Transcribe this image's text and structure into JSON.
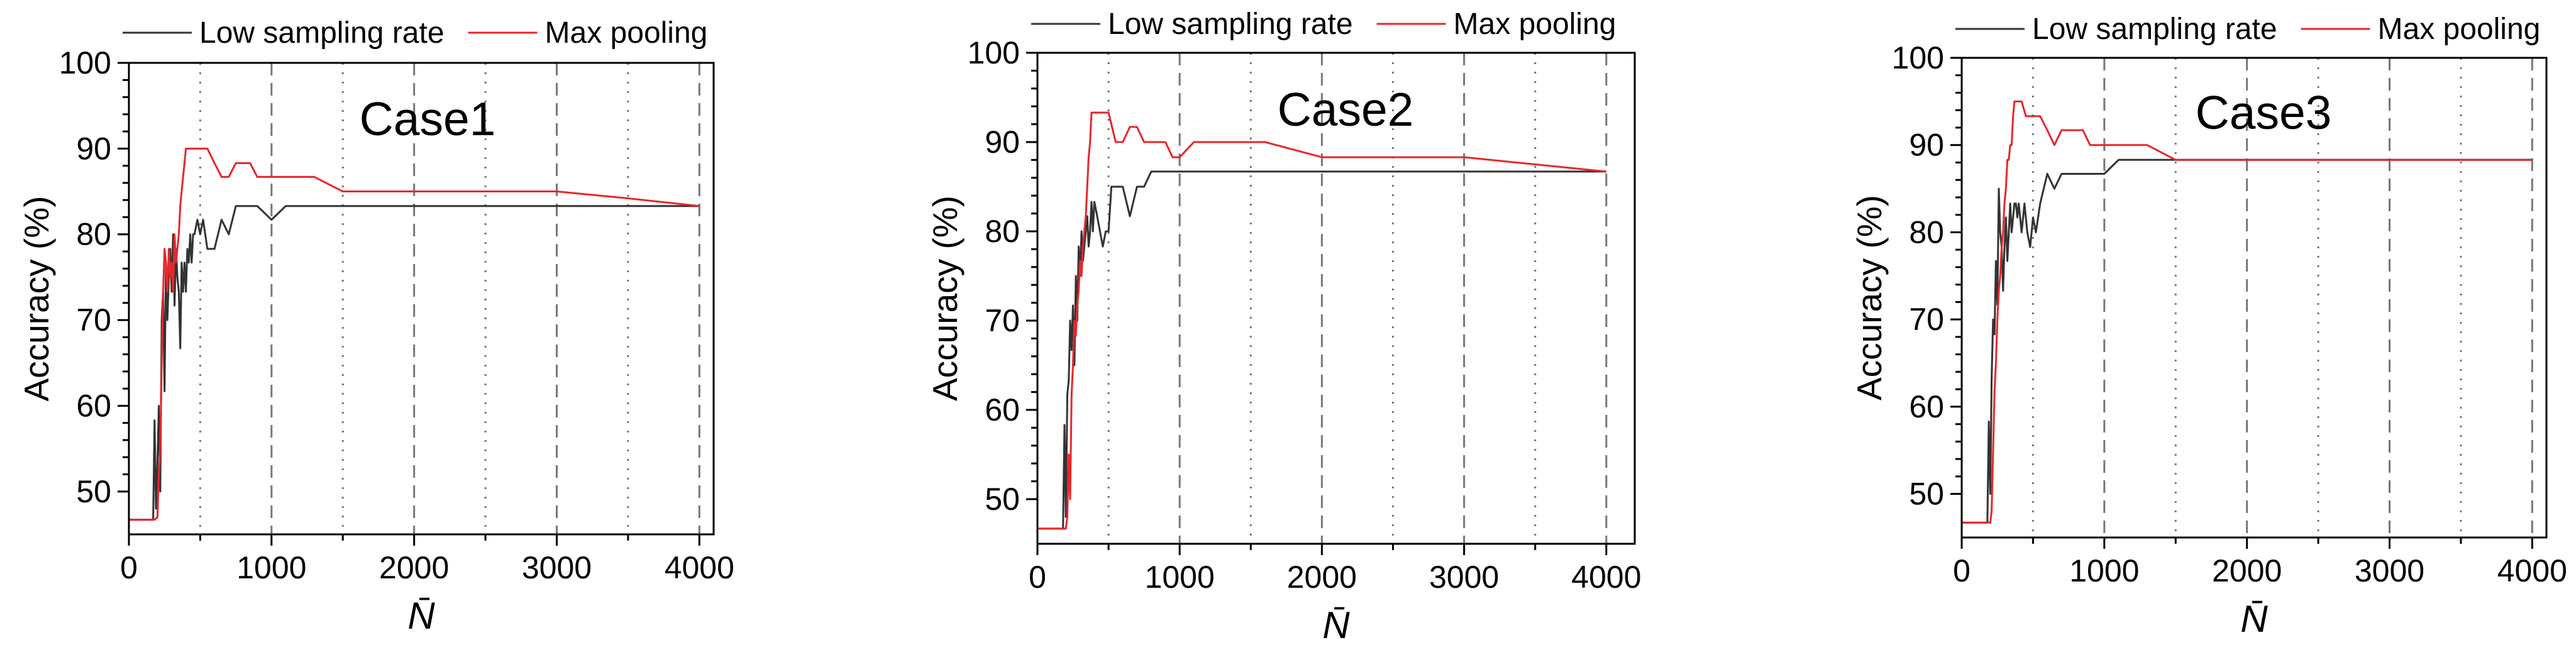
{
  "figure": {
    "description_label": "Accuracy versus N-bar for three cases"
  },
  "colors": {
    "low_sampling_rate": "#333333",
    "max_pooling": "#e8262c",
    "axis": "#000000",
    "gridline": "#777777"
  },
  "chart_data": [
    {
      "type": "line",
      "title": "Case1",
      "xlabel": "N̄",
      "ylabel": "Accuracy (%)",
      "xlim": [
        0,
        4100
      ],
      "ylim": [
        45,
        100
      ],
      "xticks": [
        0,
        1000,
        2000,
        3000,
        4000
      ],
      "yticks": [
        50,
        60,
        70,
        80,
        90,
        100
      ],
      "xtick_labels": [
        "0",
        "1000",
        "2000",
        "3000",
        "4000"
      ],
      "ytick_labels": [
        "50",
        "60",
        "70",
        "80",
        "90",
        "100"
      ],
      "grid_dashed_x": [
        1000,
        2000,
        3000,
        4000
      ],
      "grid_dotted_x": [
        500,
        1500,
        2500,
        3500
      ],
      "legend": "top-right",
      "series": [
        {
          "name": "Low sampling rate",
          "x": [
            0,
            100,
            150,
            170,
            180,
            190,
            200,
            210,
            220,
            230,
            240,
            250,
            260,
            270,
            280,
            290,
            300,
            310,
            320,
            330,
            340,
            350,
            360,
            370,
            380,
            390,
            400,
            410,
            420,
            430,
            440,
            450,
            460,
            480,
            500,
            520,
            550,
            600,
            650,
            700,
            750,
            800,
            900,
            1000,
            1100,
            1200,
            1500,
            2000,
            3000,
            4000
          ],
          "y": [
            46.7,
            46.7,
            46.7,
            46.7,
            58.3,
            48,
            53.3,
            60,
            50,
            70,
            73.3,
            61.7,
            76.7,
            70,
            75,
            78.3,
            73.3,
            80,
            71.7,
            78.3,
            75,
            73.3,
            66.7,
            76.7,
            73.3,
            76.7,
            73.3,
            78.3,
            76.7,
            80,
            76.7,
            80,
            80,
            81.7,
            80,
            81.7,
            78.3,
            78.3,
            81.7,
            80,
            83.3,
            83.3,
            83.3,
            81.7,
            83.3,
            83.3,
            83.3,
            83.3,
            83.3,
            83.3
          ]
        },
        {
          "name": "Max pooling",
          "x": [
            0,
            100,
            150,
            180,
            200,
            210,
            220,
            230,
            240,
            250,
            260,
            270,
            280,
            290,
            300,
            310,
            320,
            330,
            340,
            350,
            360,
            370,
            380,
            400,
            420,
            450,
            500,
            550,
            600,
            650,
            700,
            750,
            800,
            850,
            900,
            1000,
            1100,
            1200,
            1300,
            1500,
            2000,
            2600,
            3000,
            3500,
            4000
          ],
          "y": [
            46.7,
            46.7,
            46.7,
            46.7,
            47,
            52,
            55,
            65,
            73.3,
            78.3,
            76.7,
            73.3,
            78.3,
            75,
            76.7,
            73.3,
            80,
            76.7,
            78.3,
            80,
            83.3,
            85,
            86.7,
            90,
            90,
            90,
            90,
            90,
            88.3,
            86.7,
            86.7,
            88.3,
            88.3,
            88.3,
            86.7,
            86.7,
            86.7,
            86.7,
            86.7,
            85,
            85,
            85,
            85,
            84.2,
            83.3
          ]
        }
      ]
    },
    {
      "type": "line",
      "title": "Case2",
      "xlabel": "N̄",
      "ylabel": "Accuracy (%)",
      "xlim": [
        0,
        4200
      ],
      "ylim": [
        45,
        100
      ],
      "xticks": [
        0,
        1000,
        2000,
        3000,
        4000
      ],
      "yticks": [
        50,
        60,
        70,
        80,
        90,
        100
      ],
      "xtick_labels": [
        "0",
        "1000",
        "2000",
        "3000",
        "4000"
      ],
      "ytick_labels": [
        "50",
        "60",
        "70",
        "80",
        "90",
        "100"
      ],
      "grid_dashed_x": [
        1000,
        2000,
        3000,
        4000
      ],
      "grid_dotted_x": [
        500,
        1500,
        2500,
        3500
      ],
      "legend": "top-right",
      "series": [
        {
          "name": "Low sampling rate",
          "x": [
            0,
            100,
            150,
            180,
            190,
            200,
            210,
            220,
            230,
            240,
            250,
            260,
            270,
            280,
            290,
            300,
            310,
            320,
            330,
            340,
            350,
            360,
            370,
            380,
            390,
            400,
            420,
            440,
            460,
            480,
            500,
            520,
            550,
            600,
            650,
            700,
            750,
            800,
            900,
            1000,
            1100,
            1200,
            1500,
            2000,
            3000,
            4000
          ],
          "y": [
            46.7,
            46.7,
            46.7,
            46.7,
            58.3,
            48,
            61.7,
            63.3,
            70,
            66.7,
            71.7,
            65,
            75,
            70,
            78.3,
            75,
            80,
            76.7,
            78.3,
            80,
            81.7,
            78.3,
            80,
            83.3,
            80,
            83.3,
            81.7,
            80,
            78.3,
            80,
            80,
            85,
            85,
            85,
            81.7,
            85,
            85,
            86.7,
            86.7,
            86.7,
            86.7,
            86.7,
            86.7,
            86.7,
            86.7,
            86.7
          ]
        },
        {
          "name": "Max pooling",
          "x": [
            0,
            100,
            150,
            200,
            210,
            220,
            230,
            240,
            250,
            260,
            270,
            280,
            290,
            300,
            310,
            320,
            330,
            340,
            350,
            360,
            370,
            380,
            400,
            420,
            450,
            500,
            550,
            600,
            650,
            700,
            750,
            800,
            850,
            900,
            950,
            1000,
            1100,
            1200,
            1500,
            1600,
            2000,
            2600,
            3000,
            3500,
            4000
          ],
          "y": [
            46.7,
            46.7,
            46.7,
            46.7,
            48,
            55,
            50,
            61.7,
            65,
            70,
            68.3,
            71.7,
            73.3,
            76.7,
            75,
            78.3,
            80,
            81.7,
            85,
            88.3,
            90,
            93.3,
            93.3,
            93.3,
            93.3,
            93.3,
            90,
            90,
            91.7,
            91.7,
            90,
            90,
            90,
            90,
            88.3,
            88.3,
            90,
            90,
            90,
            90,
            88.3,
            88.3,
            88.3,
            87.5,
            86.7
          ]
        }
      ]
    },
    {
      "type": "line",
      "title": "Case3",
      "xlabel": "N̄",
      "ylabel": "Accuracy (%)",
      "xlim": [
        0,
        4100
      ],
      "ylim": [
        45,
        100
      ],
      "xticks": [
        0,
        1000,
        2000,
        3000,
        4000
      ],
      "yticks": [
        50,
        60,
        70,
        80,
        90,
        100
      ],
      "xtick_labels": [
        "0",
        "1000",
        "2000",
        "3000",
        "4000"
      ],
      "ytick_labels": [
        "50",
        "60",
        "70",
        "80",
        "90",
        "100"
      ],
      "grid_dashed_x": [
        1000,
        2000,
        3000,
        4000
      ],
      "grid_dotted_x": [
        500,
        1500,
        2500,
        3500
      ],
      "legend": "top-right",
      "series": [
        {
          "name": "Low sampling rate",
          "x": [
            0,
            100,
            150,
            180,
            190,
            200,
            210,
            220,
            230,
            240,
            250,
            260,
            270,
            280,
            290,
            300,
            310,
            320,
            330,
            340,
            350,
            360,
            370,
            380,
            390,
            400,
            420,
            440,
            460,
            480,
            500,
            520,
            550,
            600,
            650,
            700,
            750,
            800,
            900,
            1000,
            1100,
            1200,
            1500,
            2000,
            3000,
            4000
          ],
          "y": [
            46.7,
            46.7,
            46.7,
            46.7,
            58.3,
            50,
            63.3,
            70,
            68.3,
            76.7,
            71.7,
            85,
            80,
            78.3,
            73.3,
            78.3,
            81.7,
            76.7,
            80,
            83.3,
            80,
            81.7,
            83.3,
            83.3,
            81.7,
            83.3,
            80,
            83.3,
            80,
            78.3,
            81.7,
            80,
            83.3,
            86.7,
            85,
            86.7,
            86.7,
            86.7,
            86.7,
            86.7,
            88.3,
            88.3,
            88.3,
            88.3,
            88.3,
            88.3
          ]
        },
        {
          "name": "Max pooling",
          "x": [
            0,
            100,
            150,
            200,
            210,
            220,
            230,
            240,
            250,
            260,
            270,
            280,
            290,
            300,
            310,
            320,
            330,
            340,
            350,
            360,
            370,
            400,
            420,
            450,
            500,
            550,
            600,
            650,
            700,
            750,
            800,
            850,
            900,
            1000,
            1100,
            1200,
            1300,
            1500,
            1600,
            2000,
            2500,
            3000,
            3500,
            4000
          ],
          "y": [
            46.7,
            46.7,
            46.7,
            46.7,
            48,
            55,
            61.7,
            65,
            70,
            73.3,
            75,
            78.3,
            80,
            83.3,
            85,
            88.3,
            88.3,
            90,
            90,
            93.3,
            95,
            95,
            95,
            93.3,
            93.3,
            93.3,
            91.7,
            90,
            91.7,
            91.7,
            91.7,
            91.7,
            90,
            90,
            90,
            90,
            90,
            88.3,
            88.3,
            88.3,
            88.3,
            88.3,
            88.3,
            88.3
          ]
        }
      ]
    }
  ]
}
